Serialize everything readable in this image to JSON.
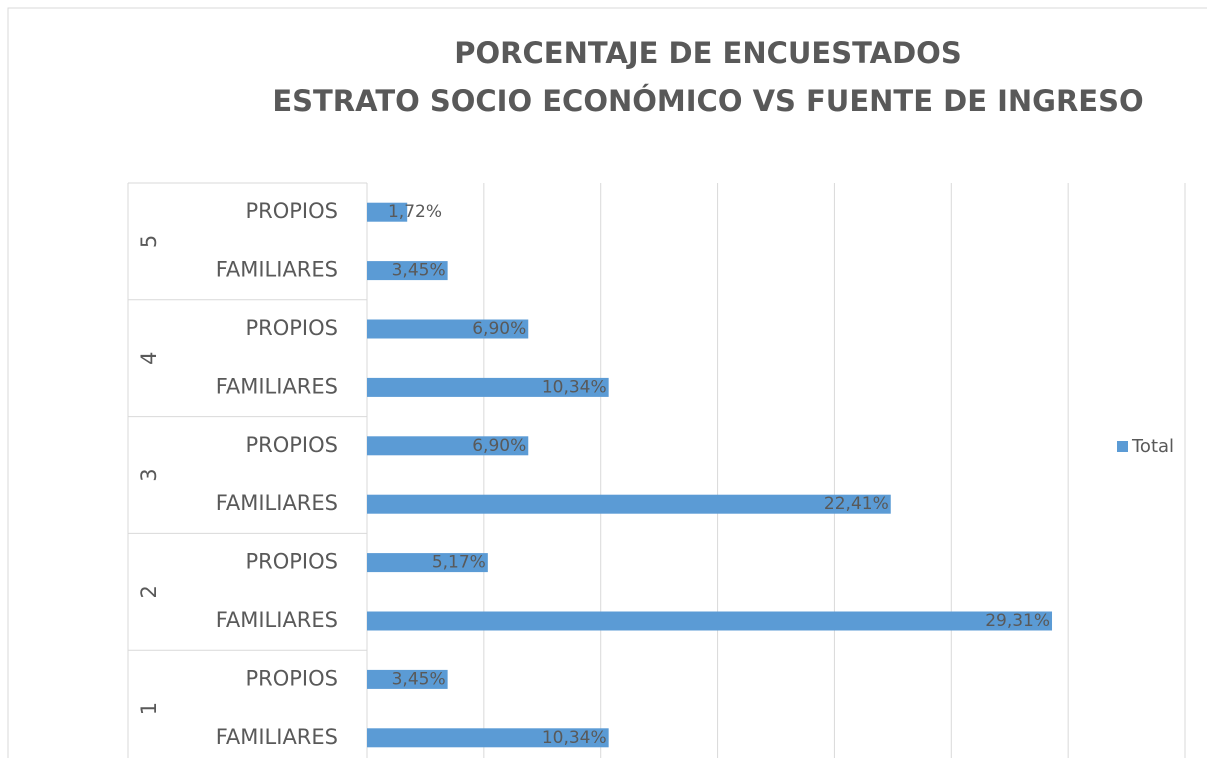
{
  "chart_data": {
    "type": "bar",
    "orientation": "horizontal",
    "title": [
      "PORCENTAJE DE ENCUESTADOS",
      "ESTRATO SOCIO ECONÓMICO VS FUENTE DE INGRESO"
    ],
    "category_groups": [
      "1",
      "2",
      "3",
      "4",
      "5"
    ],
    "categories": [
      "FAMILIARES",
      "PROPIOS",
      "FAMILIARES",
      "PROPIOS",
      "FAMILIARES",
      "PROPIOS",
      "FAMILIARES",
      "PROPIOS",
      "FAMILIARES",
      "PROPIOS"
    ],
    "series": [
      {
        "name": "Total",
        "color": "#5b9bd5",
        "values": [
          10.34,
          3.45,
          29.31,
          5.17,
          22.41,
          6.9,
          10.34,
          6.9,
          3.45,
          1.72
        ],
        "value_labels": [
          "10,34%",
          "3,45%",
          "29,31%",
          "5,17%",
          "22,41%",
          "6,90%",
          "10,34%",
          "6,90%",
          "3,45%",
          "1,72%"
        ]
      }
    ],
    "xlim": [
      0,
      35
    ],
    "xticks": [
      0,
      5,
      10,
      15,
      20,
      25,
      30,
      35
    ],
    "grid": true,
    "legend": "right"
  }
}
